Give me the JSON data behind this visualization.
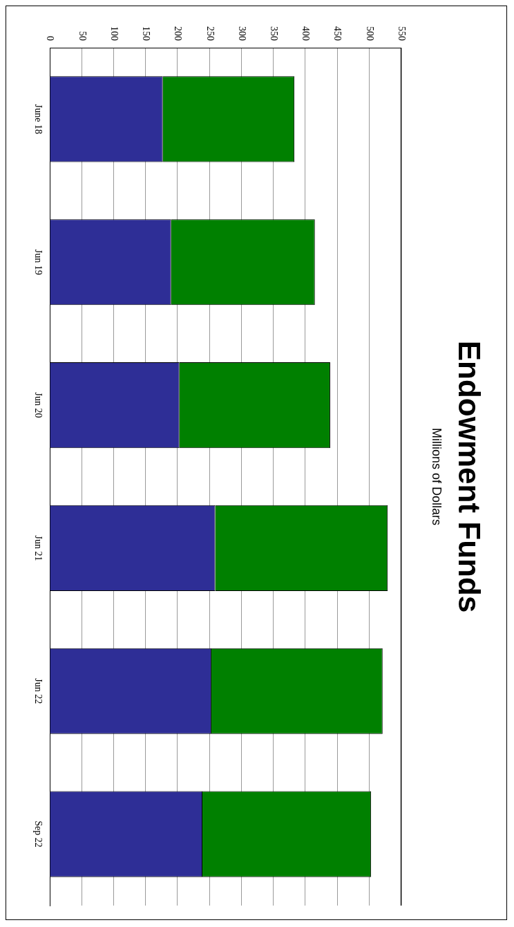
{
  "chart_data": {
    "type": "bar",
    "title": "Endowment Funds",
    "subtitle": "Millions of Dollars",
    "orientation": "horizontal",
    "stacked": true,
    "categories": [
      "June 18",
      "Jun 19",
      "Jun 20",
      "Jun 21",
      "Jun 22",
      "Sep 22"
    ],
    "series": [
      {
        "color": "#2e2e96",
        "values": [
          177,
          190,
          203,
          259,
          253,
          239
        ]
      },
      {
        "color": "#008000",
        "values": [
          206,
          225,
          236,
          270,
          268,
          264
        ]
      }
    ],
    "xlim": [
      0,
      550
    ],
    "xticks": [
      0,
      50,
      100,
      150,
      200,
      250,
      300,
      350,
      400,
      450,
      500,
      550
    ],
    "grid": "x",
    "legend": false
  }
}
